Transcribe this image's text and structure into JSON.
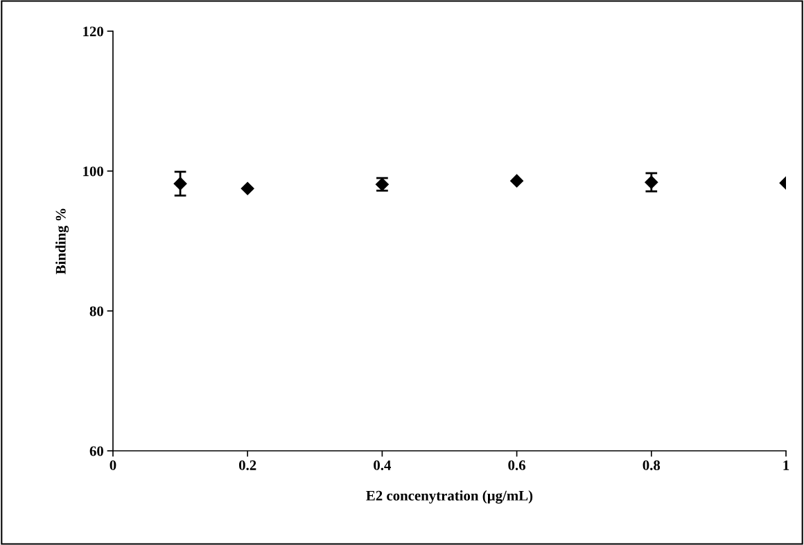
{
  "chart_data": {
    "type": "scatter",
    "xlabel": "E2 concenytration (µg/mL)",
    "ylabel": "Binding %",
    "x": [
      0.1,
      0.2,
      0.4,
      0.6,
      0.8,
      1
    ],
    "series": [
      {
        "color": "#000000",
        "values": [
          98.2,
          97.5,
          98.1,
          98.6,
          98.4,
          98.3
        ],
        "errors": [
          1.7,
          null,
          0.9,
          null,
          1.3,
          null
        ]
      }
    ],
    "marker": "diamond",
    "xlim": [
      0,
      1
    ],
    "ylim": [
      60,
      120
    ],
    "xticks": [
      0,
      0.2,
      0.4,
      0.6,
      0.8,
      1
    ],
    "yticks": [
      60,
      80,
      100,
      120
    ],
    "grid": false,
    "legend": false
  }
}
